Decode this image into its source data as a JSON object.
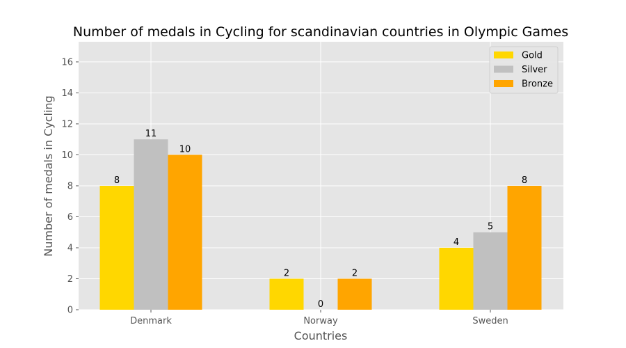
{
  "chart_data": {
    "type": "bar",
    "title": "Number of medals in Cycling for scandinavian countries in Olympic Games",
    "xlabel": "Countries",
    "ylabel": "Number of medals in Cycling",
    "categories": [
      "Denmark",
      "Norway",
      "Sweden"
    ],
    "series": [
      {
        "name": "Gold",
        "values": [
          8,
          2,
          4
        ],
        "color": "#FFD700"
      },
      {
        "name": "Silver",
        "values": [
          11,
          0,
          5
        ],
        "color": "#C0C0C0"
      },
      {
        "name": "Bronze",
        "values": [
          10,
          2,
          8
        ],
        "color": "#FFA500"
      }
    ],
    "ylim": [
      0,
      17.3
    ],
    "yticks": [
      0,
      2,
      4,
      6,
      8,
      10,
      12,
      14,
      16
    ],
    "grid": true,
    "legend_position": "top-right",
    "colors": {
      "background": "#E5E5E5",
      "grid": "#FFFFFF"
    }
  }
}
